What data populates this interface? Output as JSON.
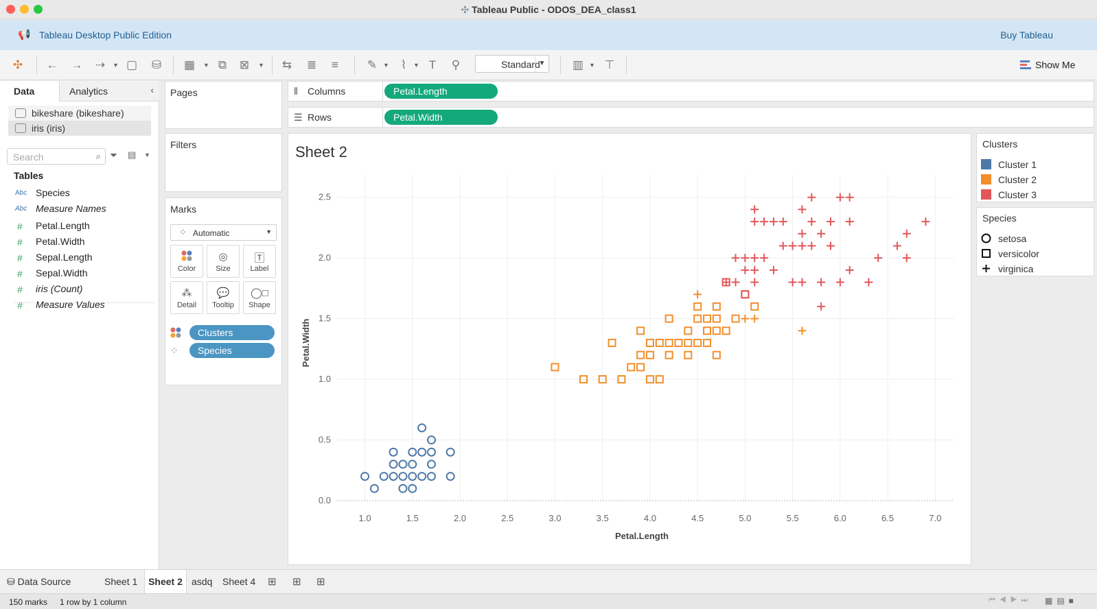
{
  "window": {
    "title": "Tableau Public - ODOS_DEA_class1"
  },
  "banner": {
    "edition": "Tableau Desktop Public Edition",
    "buy": "Buy Tableau"
  },
  "toolbar": {
    "fit": "Standard",
    "show_me": "Show Me"
  },
  "data_pane": {
    "tabs": [
      "Data",
      "Analytics"
    ],
    "sources": [
      "bikeshare (bikeshare)",
      "iris (iris)"
    ],
    "search_placeholder": "Search",
    "tables_header": "Tables",
    "dim_fields": [
      {
        "type": "Abc",
        "name": "Species"
      },
      {
        "type": "Abc",
        "name": "Measure Names"
      }
    ],
    "measure_fields": [
      "Petal.Length",
      "Petal.Width",
      "Sepal.Length",
      "Sepal.Width",
      "iris (Count)",
      "Measure Values"
    ]
  },
  "cards": {
    "pages": "Pages",
    "filters": "Filters",
    "marks": "Marks",
    "mark_type": "Automatic",
    "mark_buttons": [
      "Color",
      "Size",
      "Label",
      "Detail",
      "Tooltip",
      "Shape"
    ],
    "pills": [
      "Clusters",
      "Species"
    ]
  },
  "shelves": {
    "columns_label": "Columns",
    "columns_pill": "Petal.Length",
    "rows_label": "Rows",
    "rows_pill": "Petal.Width"
  },
  "view": {
    "sheet_title": "Sheet 2"
  },
  "legends": {
    "clusters_title": "Clusters",
    "clusters": [
      {
        "name": "Cluster 1",
        "color": "#4e79a7"
      },
      {
        "name": "Cluster 2",
        "color": "#f28e2b"
      },
      {
        "name": "Cluster 3",
        "color": "#e15759"
      }
    ],
    "species_title": "Species",
    "species": [
      "setosa",
      "versicolor",
      "virginica"
    ]
  },
  "sheet_tabs": [
    "Data Source",
    "Sheet 1",
    "Sheet 2",
    "asdq",
    "Sheet 4"
  ],
  "status": {
    "marks": "150 marks",
    "dims": "1 row by 1 column"
  },
  "chart_data": {
    "type": "scatter",
    "title": "Sheet 2",
    "xlabel": "Petal.Length",
    "ylabel": "Petal.Width",
    "xlim": [
      0.7,
      7.2
    ],
    "ylim": [
      0.0,
      2.6
    ],
    "xticks": [
      "1.0",
      "1.5",
      "2.0",
      "2.5",
      "3.0",
      "3.5",
      "4.0",
      "4.5",
      "5.0",
      "5.5",
      "6.0",
      "6.5",
      "7.0"
    ],
    "yticks": [
      "0.0",
      "0.5",
      "1.0",
      "1.5",
      "2.0",
      "2.5"
    ],
    "grid": true,
    "series": [
      {
        "name": "setosa",
        "cluster": "Cluster 1",
        "shape": "circle",
        "color": "#4e79a7",
        "points": [
          [
            1.0,
            0.2
          ],
          [
            1.1,
            0.1
          ],
          [
            1.2,
            0.2
          ],
          [
            1.3,
            0.2
          ],
          [
            1.3,
            0.3
          ],
          [
            1.3,
            0.4
          ],
          [
            1.4,
            0.1
          ],
          [
            1.4,
            0.2
          ],
          [
            1.4,
            0.3
          ],
          [
            1.5,
            0.1
          ],
          [
            1.5,
            0.2
          ],
          [
            1.5,
            0.3
          ],
          [
            1.5,
            0.4
          ],
          [
            1.6,
            0.2
          ],
          [
            1.6,
            0.4
          ],
          [
            1.6,
            0.6
          ],
          [
            1.7,
            0.2
          ],
          [
            1.7,
            0.3
          ],
          [
            1.7,
            0.4
          ],
          [
            1.7,
            0.5
          ],
          [
            1.9,
            0.2
          ],
          [
            1.9,
            0.4
          ]
        ]
      },
      {
        "name": "versicolor",
        "cluster": "Cluster 2",
        "shape": "square",
        "color": "#f28e2b",
        "points": [
          [
            3.0,
            1.1
          ],
          [
            3.3,
            1.0
          ],
          [
            3.5,
            1.0
          ],
          [
            3.6,
            1.3
          ],
          [
            3.7,
            1.0
          ],
          [
            3.8,
            1.1
          ],
          [
            3.9,
            1.1
          ],
          [
            3.9,
            1.2
          ],
          [
            3.9,
            1.4
          ],
          [
            4.0,
            1.0
          ],
          [
            4.0,
            1.2
          ],
          [
            4.0,
            1.3
          ],
          [
            4.1,
            1.0
          ],
          [
            4.1,
            1.3
          ],
          [
            4.2,
            1.2
          ],
          [
            4.2,
            1.3
          ],
          [
            4.2,
            1.5
          ],
          [
            4.3,
            1.3
          ],
          [
            4.4,
            1.2
          ],
          [
            4.4,
            1.3
          ],
          [
            4.4,
            1.4
          ],
          [
            4.5,
            1.3
          ],
          [
            4.5,
            1.5
          ],
          [
            4.5,
            1.6
          ],
          [
            4.6,
            1.3
          ],
          [
            4.6,
            1.4
          ],
          [
            4.6,
            1.5
          ],
          [
            4.7,
            1.2
          ],
          [
            4.7,
            1.4
          ],
          [
            4.7,
            1.5
          ],
          [
            4.7,
            1.6
          ],
          [
            4.8,
            1.4
          ],
          [
            4.9,
            1.5
          ],
          [
            5.0,
            1.7
          ],
          [
            5.1,
            1.6
          ]
        ]
      },
      {
        "name": "virginica",
        "cluster": "Cluster 3",
        "shape": "plus",
        "color": "#e15759",
        "points": [
          [
            4.8,
            1.8
          ],
          [
            4.9,
            1.8
          ],
          [
            4.9,
            2.0
          ],
          [
            5.0,
            2.0
          ],
          [
            5.0,
            1.9
          ],
          [
            5.1,
            1.8
          ],
          [
            5.1,
            1.9
          ],
          [
            5.1,
            2.0
          ],
          [
            5.1,
            2.3
          ],
          [
            5.1,
            2.4
          ],
          [
            5.2,
            2.0
          ],
          [
            5.2,
            2.3
          ],
          [
            5.3,
            1.9
          ],
          [
            5.3,
            2.3
          ],
          [
            5.4,
            2.1
          ],
          [
            5.4,
            2.3
          ],
          [
            5.5,
            1.8
          ],
          [
            5.5,
            2.1
          ],
          [
            5.6,
            1.8
          ],
          [
            5.6,
            2.1
          ],
          [
            5.6,
            2.2
          ],
          [
            5.6,
            2.4
          ],
          [
            5.7,
            2.1
          ],
          [
            5.7,
            2.3
          ],
          [
            5.7,
            2.5
          ],
          [
            5.8,
            1.6
          ],
          [
            5.8,
            1.8
          ],
          [
            5.8,
            2.2
          ],
          [
            5.9,
            2.1
          ],
          [
            5.9,
            2.3
          ],
          [
            6.0,
            1.8
          ],
          [
            6.0,
            2.5
          ],
          [
            6.1,
            1.9
          ],
          [
            6.1,
            2.3
          ],
          [
            6.1,
            2.5
          ],
          [
            6.3,
            1.8
          ],
          [
            6.4,
            2.0
          ],
          [
            6.6,
            2.1
          ],
          [
            6.7,
            2.0
          ],
          [
            6.7,
            2.2
          ],
          [
            6.9,
            2.3
          ]
        ]
      },
      {
        "name": "virginica",
        "cluster": "Cluster 2",
        "shape": "plus",
        "color": "#f28e2b",
        "points": [
          [
            4.5,
            1.7
          ],
          [
            5.0,
            1.5
          ],
          [
            5.1,
            1.5
          ],
          [
            5.6,
            1.4
          ]
        ]
      },
      {
        "name": "versicolor",
        "cluster": "Cluster 3",
        "shape": "square",
        "color": "#e15759",
        "points": [
          [
            4.8,
            1.8
          ],
          [
            5.0,
            1.7
          ]
        ]
      }
    ]
  }
}
